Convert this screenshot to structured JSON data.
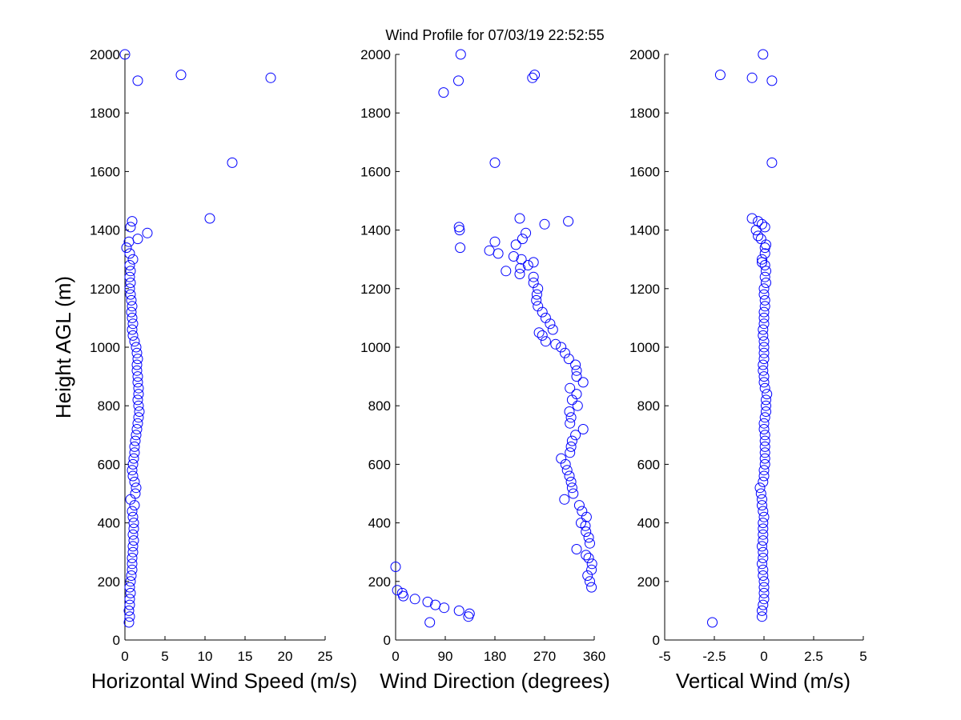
{
  "chart_data": {
    "type": "scatter",
    "title": "Wind Profile for  07/03/19 22:52:55",
    "ylabel": "Height AGL (m)",
    "ylim": [
      0,
      2000
    ],
    "yticks": [
      "0",
      "200",
      "400",
      "600",
      "800",
      "1000",
      "1200",
      "1400",
      "1600",
      "1800",
      "2000"
    ],
    "marker_color": "#0000ff",
    "panels": [
      {
        "id": "speed",
        "xlabel": "Horizontal Wind Speed (m/s)",
        "xlim": [
          0,
          25
        ],
        "xtick_values": [
          0,
          5,
          10,
          15,
          20,
          25
        ],
        "xtick_labels": [
          "0",
          "5",
          "10",
          "15",
          "20",
          "25"
        ],
        "points": [
          [
            0.5,
            60
          ],
          [
            0.6,
            80
          ],
          [
            0.5,
            100
          ],
          [
            0.6,
            120
          ],
          [
            0.6,
            140
          ],
          [
            0.7,
            160
          ],
          [
            0.6,
            180
          ],
          [
            0.7,
            200
          ],
          [
            0.8,
            220
          ],
          [
            0.9,
            240
          ],
          [
            0.9,
            260
          ],
          [
            0.9,
            280
          ],
          [
            1.0,
            300
          ],
          [
            1.0,
            320
          ],
          [
            1.1,
            340
          ],
          [
            1.0,
            360
          ],
          [
            1.1,
            380
          ],
          [
            1.1,
            400
          ],
          [
            1.0,
            420
          ],
          [
            0.9,
            440
          ],
          [
            1.2,
            460
          ],
          [
            0.7,
            480
          ],
          [
            1.3,
            500
          ],
          [
            1.4,
            520
          ],
          [
            1.2,
            540
          ],
          [
            1.0,
            560
          ],
          [
            0.9,
            580
          ],
          [
            1.0,
            600
          ],
          [
            1.1,
            620
          ],
          [
            1.2,
            640
          ],
          [
            1.2,
            660
          ],
          [
            1.3,
            680
          ],
          [
            1.4,
            700
          ],
          [
            1.5,
            720
          ],
          [
            1.6,
            740
          ],
          [
            1.7,
            760
          ],
          [
            1.8,
            780
          ],
          [
            1.7,
            800
          ],
          [
            1.6,
            820
          ],
          [
            1.7,
            840
          ],
          [
            1.7,
            860
          ],
          [
            1.6,
            880
          ],
          [
            1.6,
            900
          ],
          [
            1.5,
            920
          ],
          [
            1.5,
            940
          ],
          [
            1.6,
            960
          ],
          [
            1.5,
            980
          ],
          [
            1.4,
            1000
          ],
          [
            1.2,
            1020
          ],
          [
            1.0,
            1040
          ],
          [
            0.9,
            1060
          ],
          [
            1.0,
            1080
          ],
          [
            0.9,
            1100
          ],
          [
            0.8,
            1120
          ],
          [
            0.9,
            1140
          ],
          [
            0.8,
            1160
          ],
          [
            0.7,
            1180
          ],
          [
            0.6,
            1200
          ],
          [
            0.7,
            1220
          ],
          [
            0.6,
            1240
          ],
          [
            0.7,
            1260
          ],
          [
            0.6,
            1280
          ],
          [
            1.0,
            1300
          ],
          [
            0.6,
            1320
          ],
          [
            0.2,
            1340
          ],
          [
            0.5,
            1360
          ],
          [
            1.6,
            1370
          ],
          [
            2.8,
            1390
          ],
          [
            0.7,
            1410
          ],
          [
            0.9,
            1430
          ],
          [
            10.6,
            1440
          ],
          [
            13.4,
            1630
          ],
          [
            18.2,
            1920
          ],
          [
            7.0,
            1930
          ],
          [
            1.6,
            1910
          ],
          [
            0.0,
            2000
          ]
        ]
      },
      {
        "id": "direction",
        "xlabel": "Wind Direction (degrees)",
        "xlim": [
          0,
          360
        ],
        "xtick_values": [
          0,
          90,
          180,
          270,
          360
        ],
        "xtick_labels": [
          "0",
          "90",
          "180",
          "270",
          "360"
        ],
        "points": [
          [
            62,
            60
          ],
          [
            132,
            80
          ],
          [
            134,
            90
          ],
          [
            115,
            100
          ],
          [
            88,
            110
          ],
          [
            72,
            120
          ],
          [
            58,
            130
          ],
          [
            35,
            140
          ],
          [
            14,
            150
          ],
          [
            12,
            160
          ],
          [
            3,
            170
          ],
          [
            0,
            250
          ],
          [
            355,
            180
          ],
          [
            352,
            200
          ],
          [
            348,
            220
          ],
          [
            355,
            240
          ],
          [
            356,
            260
          ],
          [
            350,
            280
          ],
          [
            345,
            290
          ],
          [
            328,
            310
          ],
          [
            352,
            330
          ],
          [
            350,
            350
          ],
          [
            345,
            370
          ],
          [
            344,
            390
          ],
          [
            336,
            400
          ],
          [
            346,
            420
          ],
          [
            338,
            440
          ],
          [
            333,
            460
          ],
          [
            306,
            480
          ],
          [
            322,
            500
          ],
          [
            320,
            520
          ],
          [
            318,
            540
          ],
          [
            315,
            560
          ],
          [
            311,
            580
          ],
          [
            308,
            600
          ],
          [
            300,
            620
          ],
          [
            316,
            640
          ],
          [
            318,
            660
          ],
          [
            320,
            680
          ],
          [
            326,
            700
          ],
          [
            340,
            720
          ],
          [
            316,
            740
          ],
          [
            318,
            760
          ],
          [
            315,
            780
          ],
          [
            330,
            800
          ],
          [
            320,
            820
          ],
          [
            328,
            840
          ],
          [
            316,
            860
          ],
          [
            340,
            880
          ],
          [
            328,
            900
          ],
          [
            328,
            920
          ],
          [
            326,
            940
          ],
          [
            314,
            960
          ],
          [
            307,
            980
          ],
          [
            300,
            1000
          ],
          [
            290,
            1010
          ],
          [
            272,
            1020
          ],
          [
            266,
            1040
          ],
          [
            260,
            1050
          ],
          [
            285,
            1060
          ],
          [
            280,
            1080
          ],
          [
            272,
            1100
          ],
          [
            266,
            1120
          ],
          [
            258,
            1140
          ],
          [
            255,
            1160
          ],
          [
            256,
            1180
          ],
          [
            258,
            1200
          ],
          [
            250,
            1220
          ],
          [
            250,
            1240
          ],
          [
            225,
            1250
          ],
          [
            200,
            1260
          ],
          [
            226,
            1270
          ],
          [
            240,
            1280
          ],
          [
            250,
            1290
          ],
          [
            228,
            1300
          ],
          [
            214,
            1310
          ],
          [
            186,
            1320
          ],
          [
            170,
            1330
          ],
          [
            117,
            1340
          ],
          [
            218,
            1350
          ],
          [
            180,
            1360
          ],
          [
            230,
            1370
          ],
          [
            236,
            1390
          ],
          [
            116,
            1400
          ],
          [
            115,
            1410
          ],
          [
            270,
            1420
          ],
          [
            225,
            1440
          ],
          [
            313,
            1430
          ],
          [
            180,
            1630
          ],
          [
            87,
            1870
          ],
          [
            114,
            1910
          ],
          [
            248,
            1920
          ],
          [
            252,
            1930
          ],
          [
            118,
            2000
          ]
        ]
      },
      {
        "id": "vertical",
        "xlabel": "Vertical Wind (m/s)",
        "xlim": [
          -5,
          5
        ],
        "xtick_values": [
          -5,
          -2.5,
          0,
          2.5,
          5
        ],
        "xtick_labels": [
          "-5",
          "-2.5",
          "0",
          "2.5",
          "5"
        ],
        "points": [
          [
            -2.6,
            60
          ],
          [
            -0.1,
            80
          ],
          [
            -0.1,
            100
          ],
          [
            -0.05,
            120
          ],
          [
            0,
            140
          ],
          [
            0,
            160
          ],
          [
            0,
            180
          ],
          [
            0,
            200
          ],
          [
            -0.05,
            220
          ],
          [
            -0.05,
            240
          ],
          [
            -0.1,
            260
          ],
          [
            -0.05,
            280
          ],
          [
            -0.05,
            300
          ],
          [
            -0.1,
            320
          ],
          [
            -0.05,
            340
          ],
          [
            -0.05,
            360
          ],
          [
            -0.05,
            380
          ],
          [
            -0.05,
            400
          ],
          [
            0,
            420
          ],
          [
            -0.05,
            440
          ],
          [
            -0.1,
            460
          ],
          [
            -0.1,
            480
          ],
          [
            -0.15,
            500
          ],
          [
            -0.2,
            520
          ],
          [
            -0.05,
            540
          ],
          [
            0,
            560
          ],
          [
            0,
            580
          ],
          [
            0.05,
            600
          ],
          [
            0.05,
            620
          ],
          [
            0.05,
            640
          ],
          [
            0.05,
            660
          ],
          [
            0.05,
            680
          ],
          [
            0.05,
            700
          ],
          [
            0,
            720
          ],
          [
            0,
            740
          ],
          [
            0.05,
            760
          ],
          [
            0.1,
            780
          ],
          [
            0.1,
            800
          ],
          [
            0.1,
            820
          ],
          [
            0.15,
            840
          ],
          [
            0.05,
            860
          ],
          [
            0,
            880
          ],
          [
            0,
            900
          ],
          [
            -0.05,
            920
          ],
          [
            -0.05,
            940
          ],
          [
            0,
            960
          ],
          [
            0,
            980
          ],
          [
            0,
            1000
          ],
          [
            0,
            1020
          ],
          [
            -0.05,
            1040
          ],
          [
            -0.05,
            1060
          ],
          [
            0,
            1080
          ],
          [
            0,
            1100
          ],
          [
            0,
            1120
          ],
          [
            0.05,
            1140
          ],
          [
            0.05,
            1160
          ],
          [
            0,
            1180
          ],
          [
            0,
            1200
          ],
          [
            0.1,
            1220
          ],
          [
            0.05,
            1240
          ],
          [
            0.1,
            1260
          ],
          [
            0.05,
            1280
          ],
          [
            -0.1,
            1290
          ],
          [
            -0.1,
            1300
          ],
          [
            0.05,
            1320
          ],
          [
            0.05,
            1340
          ],
          [
            0.1,
            1350
          ],
          [
            -0.15,
            1370
          ],
          [
            -0.3,
            1380
          ],
          [
            -0.4,
            1400
          ],
          [
            0.05,
            1410
          ],
          [
            -0.1,
            1420
          ],
          [
            -0.3,
            1430
          ],
          [
            -0.6,
            1440
          ],
          [
            0.4,
            1630
          ],
          [
            -2.2,
            1930
          ],
          [
            -0.6,
            1920
          ],
          [
            0.4,
            1910
          ],
          [
            -0.05,
            2000
          ]
        ]
      }
    ]
  }
}
